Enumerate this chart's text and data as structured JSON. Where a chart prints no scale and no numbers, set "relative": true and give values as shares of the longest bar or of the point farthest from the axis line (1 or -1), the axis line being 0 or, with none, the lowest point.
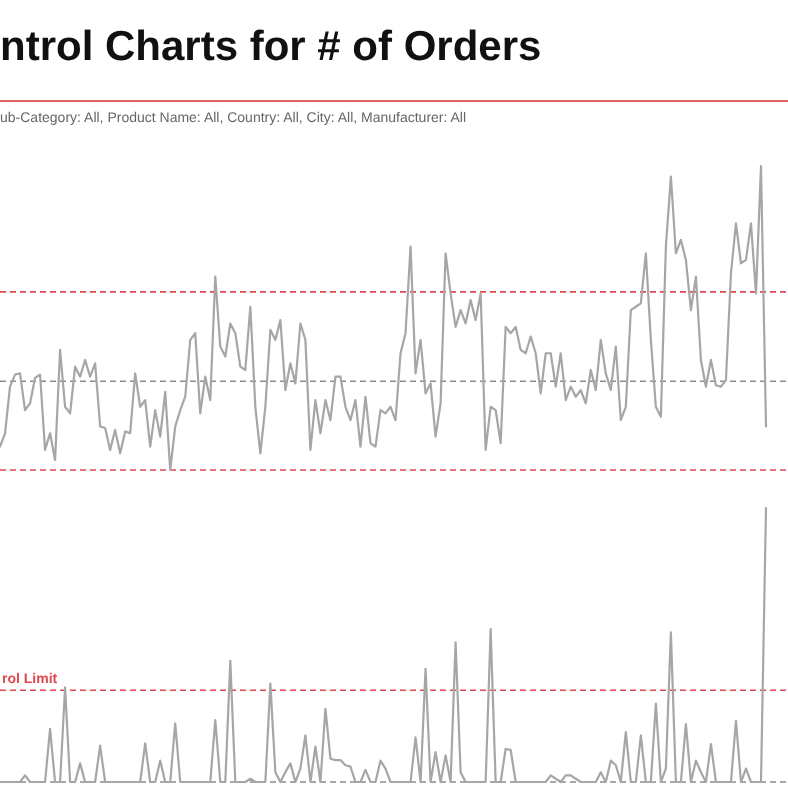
{
  "chart_data": [
    {
      "type": "line",
      "title": "ntrol Charts for # of Orders",
      "subtitle": "ub-Category: All, Product Name: All, Country: All, City: All, Manufacturer: All",
      "relative": true,
      "tick_labels": false,
      "categories": [
        null,
        null,
        null,
        null,
        null,
        null,
        null,
        null,
        null,
        null,
        null,
        null,
        null,
        null,
        null,
        null,
        null,
        null,
        null,
        null,
        null,
        null,
        null,
        null,
        null,
        null,
        null,
        null,
        null,
        null,
        null,
        null,
        null,
        null,
        null,
        null,
        null,
        null,
        null,
        null,
        null,
        null,
        null,
        null,
        null,
        null,
        null,
        null,
        null,
        null,
        null,
        null,
        null,
        null,
        null,
        null,
        null,
        null,
        null,
        null,
        null,
        null,
        null,
        null,
        null,
        null,
        null,
        null,
        null,
        null,
        null,
        null,
        null,
        null,
        null,
        null,
        null,
        null,
        null,
        null,
        null,
        null,
        null,
        null,
        null,
        null,
        null,
        null,
        null,
        null,
        null,
        null,
        null,
        null,
        null,
        null,
        null,
        null,
        null,
        null,
        null,
        null,
        null,
        null,
        null,
        null,
        null,
        null,
        null,
        null,
        null,
        null,
        null,
        null,
        null,
        null,
        null,
        null,
        null,
        null,
        null,
        null,
        null,
        null,
        null,
        null,
        null,
        null,
        null,
        null,
        null,
        null,
        null,
        null,
        null,
        null,
        null,
        null,
        null,
        null,
        null,
        null,
        null,
        null,
        null,
        null,
        null,
        null,
        null,
        null,
        null,
        null,
        null,
        null
      ],
      "series": [
        {
          "color": "#a6a6a6",
          "values": [
            0.077,
            0.12,
            0.274,
            0.314,
            0.318,
            0.197,
            0.219,
            0.303,
            0.314,
            0.066,
            0.121,
            0.033,
            0.395,
            0.208,
            0.186,
            0.34,
            0.307,
            0.362,
            0.307,
            0.351,
            0.143,
            0.138,
            0.066,
            0.132,
            0.055,
            0.127,
            0.121,
            0.318,
            0.208,
            0.23,
            0.077,
            0.197,
            0.11,
            0.257,
            0,
            0.143,
            0.197,
            0.241,
            0.428,
            0.45,
            0.186,
            0.307,
            0.23,
            0.636,
            0.406,
            0.373,
            0.482,
            0.45,
            0.34,
            0.329,
            0.537,
            0.208,
            0.055,
            0.208,
            0.461,
            0.428,
            0.493,
            0.263,
            0.351,
            0.285,
            0.482,
            0.428,
            0.066,
            0.23,
            0.121,
            0.23,
            0.164,
            0.307,
            0.307,
            0.208,
            0.164,
            0.23,
            0.077,
            0.241,
            0.088,
            0.077,
            0.197,
            0.186,
            0.208,
            0.164,
            0.384,
            0.45,
            0.735,
            0.318,
            0.428,
            0.252,
            0.285,
            0.11,
            0.219,
            0.713,
            0.581,
            0.471,
            0.526,
            0.482,
            0.559,
            0.493,
            0.581,
            0.066,
            0.208,
            0.197,
            0.088,
            0.471,
            0.45,
            0.471,
            0.395,
            0.384,
            0.439,
            0.384,
            0.252,
            0.384,
            0.384,
            0.274,
            0.384,
            0.23,
            0.274,
            0.241,
            0.263,
            0.219,
            0.329,
            0.263,
            0.428,
            0.318,
            0.263,
            0.406,
            0.164,
            0.208,
            0.526,
            0.537,
            0.548,
            0.713,
            0.428,
            0.208,
            0.175,
            0.735,
            0.965,
            0.713,
            0.757,
            0.691,
            0.526,
            0.636,
            0.362,
            0.274,
            0.362,
            0.279,
            0.274,
            0.296,
            0.647,
            0.811,
            0.68,
            0.691,
            0.811,
            0.581,
            1,
            0.143
          ]
        }
      ],
      "ref_lines": [
        {
          "axis": "y",
          "value": 0.586,
          "color": "#e0474f",
          "line_style": "dashed"
        },
        {
          "axis": "y",
          "value": 0.292,
          "color": "#8c8c8c",
          "line_style": "dashed"
        },
        {
          "axis": "y",
          "value": 0,
          "color": "#e0474f",
          "line_style": "dashed"
        }
      ]
    },
    {
      "type": "line",
      "relative": true,
      "tick_labels": false,
      "categories": [
        null,
        null,
        null,
        null,
        null,
        null,
        null,
        null,
        null,
        null,
        null,
        null,
        null,
        null,
        null,
        null,
        null,
        null,
        null,
        null,
        null,
        null,
        null,
        null,
        null,
        null,
        null,
        null,
        null,
        null,
        null,
        null,
        null,
        null,
        null,
        null,
        null,
        null,
        null,
        null,
        null,
        null,
        null,
        null,
        null,
        null,
        null,
        null,
        null,
        null,
        null,
        null,
        null,
        null,
        null,
        null,
        null,
        null,
        null,
        null,
        null,
        null,
        null,
        null,
        null,
        null,
        null,
        null,
        null,
        null,
        null,
        null,
        null,
        null,
        null,
        null,
        null,
        null,
        null,
        null,
        null,
        null,
        null,
        null,
        null,
        null,
        null,
        null,
        null,
        null,
        null,
        null,
        null,
        null,
        null,
        null,
        null,
        null,
        null,
        null,
        null,
        null,
        null,
        null,
        null,
        null,
        null,
        null,
        null,
        null,
        null,
        null,
        null,
        null,
        null,
        null,
        null,
        null,
        null,
        null,
        null,
        null,
        null,
        null,
        null,
        null,
        null,
        null,
        null,
        null,
        null,
        null,
        null,
        null,
        null,
        null,
        null,
        null,
        null,
        null,
        null,
        null,
        null,
        null,
        null,
        null,
        null,
        null,
        null,
        null,
        null,
        null,
        null,
        null
      ],
      "series": [
        {
          "color": "#a6a6a6",
          "values": [
            0,
            0,
            0,
            0,
            0,
            0.024,
            0,
            0,
            0,
            0,
            0.194,
            0,
            0,
            0.345,
            0,
            0,
            0.068,
            0,
            0,
            0,
            0.133,
            0,
            0,
            0,
            0,
            0,
            0,
            0,
            0,
            0.141,
            0,
            0,
            0.078,
            0,
            0,
            0.214,
            0,
            0,
            0,
            0,
            0,
            0,
            0,
            0.226,
            0,
            0,
            0.442,
            0,
            0,
            0,
            0.012,
            0,
            0,
            0,
            0.359,
            0.036,
            0,
            0.036,
            0.068,
            0,
            0.049,
            0.17,
            0,
            0.129,
            0,
            0.267,
            0.085,
            0.08,
            0.08,
            0.061,
            0.056,
            0,
            0,
            0.044,
            0,
            0,
            0.078,
            0.049,
            0,
            0,
            0,
            0,
            0,
            0.163,
            0,
            0.413,
            0,
            0.109,
            0,
            0.097,
            0,
            0.51,
            0.036,
            0,
            0,
            0,
            0,
            0,
            0.558,
            0,
            0,
            0.121,
            0.117,
            0,
            0,
            0,
            0,
            0,
            0,
            0,
            0.024,
            0.012,
            0,
            0.024,
            0.024,
            0.012,
            0,
            0,
            0,
            0,
            0.036,
            0,
            0.078,
            0.061,
            0,
            0.182,
            0,
            0,
            0.17,
            0,
            0,
            0.286,
            0,
            0.049,
            0.546,
            0,
            0,
            0.211,
            0,
            0.078,
            0.036,
            0,
            0.138,
            0,
            0,
            0,
            0,
            0.223,
            0,
            0.049,
            0,
            0,
            0,
            1
          ]
        }
      ],
      "ref_lines": [
        {
          "axis": "y",
          "value": 0.335,
          "label": "rol Limit",
          "color": "#e0474f",
          "line_style": "dashed"
        },
        {
          "axis": "y",
          "value": 0,
          "color": "#8c8c8c",
          "line_style": "dashed"
        }
      ]
    }
  ]
}
